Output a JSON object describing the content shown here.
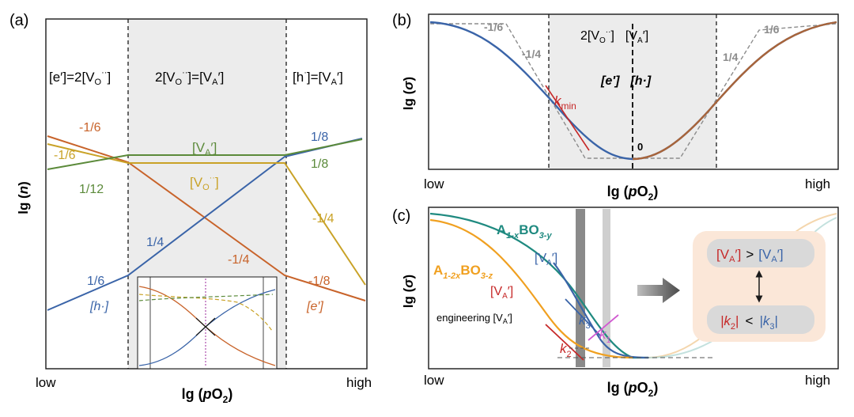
{
  "colors": {
    "blue": "#3a64a8",
    "orange": "#c8632a",
    "green": "#5b8a3a",
    "gold": "#c9a227",
    "red": "#c62828",
    "teal": "#1f8a80",
    "magenta": "#d15ad1",
    "shade": "#ececec",
    "grey_dash": "#8c8c8c"
  },
  "panel_a": {
    "label": "(a)",
    "regimes": {
      "left_prefix": "[e′]=2[V",
      "left_sub": "O",
      "left_sup": "··",
      "left_suffix": "]",
      "mid_prefix": "2[V",
      "mid_sub": "O",
      "mid_sup": "··",
      "mid_suffix": "]=[V",
      "mid_sub2": "A",
      "mid_suffix2": "′]",
      "right_prefix": "[h",
      "right_sup": "·",
      "right_suffix": "]=[V",
      "right_sub": "A",
      "right_suffix2": "′]"
    },
    "slopes": {
      "orange_left": "-1/6",
      "gold_left": "-1/6",
      "green_left": "1/12",
      "va_label": "[V",
      "va_sub": "A",
      "va_suffix": "′]",
      "vo_label": "[V",
      "vo_sub": "O",
      "vo_sup": "··",
      "vo_suffix": "]",
      "blue_mid": "1/4",
      "orange_mid": "-1/4",
      "blue_right": "1/8",
      "green_right": "1/8",
      "gold_right": "-1/4",
      "blue_left": "1/6",
      "orange_right": "-1/8",
      "hole_label": "[h·]",
      "electron_label": "[e′]"
    },
    "axes": {
      "ylabel": "lg (n)",
      "xlabel": "lg (pO2)",
      "x_low": "low",
      "x_high": "high"
    }
  },
  "panel_b": {
    "label": "(b)",
    "slopes": {
      "s1": "-1/6",
      "s2": "-1/4",
      "s3": "1/6",
      "s4": "1/4",
      "zero": "0"
    },
    "center_prefix": "2[V",
    "center_sub": "O",
    "center_sup": "··",
    "center_suffix": "]",
    "center_suffix2": "[V",
    "center_sub2": "A",
    "center_suffix3": "′]",
    "eh_text": "[e′]",
    "eh_text2": "[h·]",
    "kmin": "k",
    "kmin_sub": "min",
    "axes": {
      "ylabel": "lg (σ)",
      "xlabel": "lg (pO2)",
      "x_low": "low",
      "x_high": "high"
    }
  },
  "panel_c": {
    "label": "(c)",
    "curve1": {
      "a": "A",
      "sub1": "1-x",
      "b": "BO",
      "sub2": "3-y"
    },
    "curve2": {
      "a": "A",
      "sub1": "1-2x",
      "b": "BO",
      "sub2": "3-z"
    },
    "va_blue": "[V",
    "va_sub": "A",
    "va_suffix": "′]",
    "engineering_prefix": "engineering [V",
    "engineering_sub": "A",
    "engineering_suffix": "′]",
    "k1": "k",
    "k1_sub": "1",
    "k2": "k",
    "k2_sub": "2",
    "k3": "k",
    "k3_sub": "3",
    "box_top_left": "[V",
    "box_top_left_sub": "A",
    "box_top_left_suffix": "′]",
    "box_top_op": ">",
    "box_bottom_left": "|k",
    "box_bottom_left_sub": "2",
    "box_bottom_left_suffix": "|",
    "box_bottom_op": "<",
    "box_bottom_right": "|k",
    "box_bottom_right_sub": "3",
    "box_bottom_right_suffix": "|",
    "arrow_symbol": "↕",
    "axes": {
      "ylabel": "lg (σ)",
      "xlabel": "lg (pO2)",
      "x_low": "low",
      "x_high": "high"
    }
  },
  "chart_data": [
    {
      "type": "line",
      "panel": "(a)",
      "xlabel": "lg (pO2)",
      "ylabel": "lg (n)",
      "x_ticks": [
        "low",
        "high"
      ],
      "regions": [
        "[e′]=2[VO··]",
        "2[VO··]=[VA′]",
        "[h·]=[VA′]"
      ],
      "series": [
        {
          "name": "[h·]",
          "segments_slopes": [
            "1/6",
            "1/4",
            "1/8"
          ]
        },
        {
          "name": "[e′]",
          "segments_slopes": [
            "-1/6",
            "-1/4",
            "-1/8"
          ]
        },
        {
          "name": "[VA′]",
          "segments_slopes": [
            "1/12",
            "0",
            "1/8"
          ]
        },
        {
          "name": "[VO··]",
          "segments_slopes": [
            "-1/6",
            "0",
            "-1/4"
          ]
        }
      ]
    },
    {
      "type": "line",
      "panel": "(b)",
      "xlabel": "lg (pO2)",
      "ylabel": "lg (σ)",
      "x_ticks": [
        "low",
        "high"
      ],
      "slopes": [
        "-1/6",
        "-1/4",
        "0",
        "1/4",
        "1/6"
      ],
      "annotations": [
        "2[VO··]=[VA′]",
        "[e′]=[h·]",
        "kmin"
      ]
    },
    {
      "type": "line",
      "panel": "(c)",
      "xlabel": "lg (pO2)",
      "ylabel": "lg (σ)",
      "x_ticks": [
        "low",
        "high"
      ],
      "series": [
        {
          "name": "A1-xBO3-y"
        },
        {
          "name": "A1-2xBO3-z"
        }
      ],
      "annotations": [
        "k1",
        "k2",
        "k3",
        "engineering [VA′]",
        "[VA′] > [VA′]",
        "|k2| < |k3|"
      ]
    }
  ]
}
